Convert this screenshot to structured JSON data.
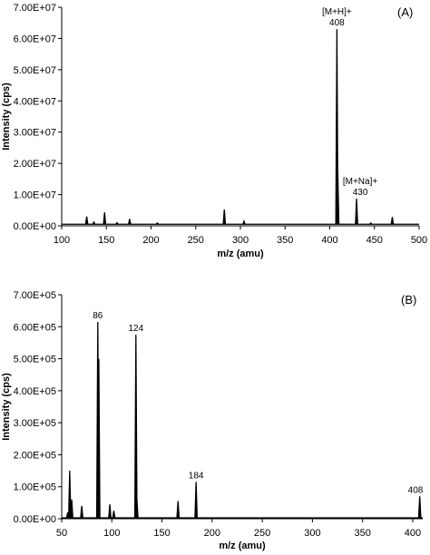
{
  "chart_data": [
    {
      "type": "line",
      "panel_label": "(A)",
      "xlabel": "m/z (amu)",
      "ylabel": "Intensity (cps)",
      "xlim": [
        100,
        500
      ],
      "ylim": [
        0,
        70000000
      ],
      "xticks": [
        100,
        150,
        200,
        250,
        300,
        350,
        400,
        450,
        500
      ],
      "yticks": [
        0,
        10000000,
        20000000,
        30000000,
        40000000,
        50000000,
        60000000,
        70000000
      ],
      "ytick_labels": [
        "0.00E+00",
        "1.00E+07",
        "2.00E+07",
        "3.00E+07",
        "4.00E+07",
        "5.00E+07",
        "6.00E+07",
        "7.00E+07"
      ],
      "baseline": 500000,
      "peaks": [
        {
          "x": 128,
          "y": 3000000
        },
        {
          "x": 136,
          "y": 1200000
        },
        {
          "x": 148,
          "y": 4300000
        },
        {
          "x": 162,
          "y": 1000000
        },
        {
          "x": 176,
          "y": 2200000
        },
        {
          "x": 207,
          "y": 900000
        },
        {
          "x": 282,
          "y": 5200000
        },
        {
          "x": 304,
          "y": 1500000
        },
        {
          "x": 408,
          "y": 63000000
        },
        {
          "x": 409,
          "y": 17000000
        },
        {
          "x": 430,
          "y": 8700000
        },
        {
          "x": 446,
          "y": 900000
        },
        {
          "x": 470,
          "y": 2800000
        }
      ],
      "annotations": [
        {
          "text": "[M+H]+",
          "text2": "408",
          "x": 408,
          "y": 63000000
        },
        {
          "text": "[M+Na]+",
          "text2": "430",
          "x": 430,
          "y": 8700000
        }
      ]
    },
    {
      "type": "line",
      "panel_label": "(B)",
      "xlabel": "m/z (amu)",
      "ylabel": "Intensity (cps)",
      "xlim": [
        50,
        410
      ],
      "ylim": [
        0,
        700000
      ],
      "xticks": [
        50,
        100,
        150,
        200,
        250,
        300,
        350,
        400
      ],
      "yticks": [
        0,
        100000,
        200000,
        300000,
        400000,
        500000,
        600000,
        700000
      ],
      "ytick_labels": [
        "0.00E+00",
        "1.00E+05",
        "2.00E+05",
        "3.00E+05",
        "4.00E+05",
        "5.00E+05",
        "6.00E+05",
        "7.00E+05"
      ],
      "baseline": 3000,
      "peaks": [
        {
          "x": 56,
          "y": 20000
        },
        {
          "x": 58,
          "y": 150000
        },
        {
          "x": 60,
          "y": 60000
        },
        {
          "x": 70,
          "y": 40000
        },
        {
          "x": 86,
          "y": 615000
        },
        {
          "x": 87,
          "y": 500000
        },
        {
          "x": 98,
          "y": 45000
        },
        {
          "x": 102,
          "y": 25000
        },
        {
          "x": 124,
          "y": 575000
        },
        {
          "x": 125,
          "y": 60000
        },
        {
          "x": 166,
          "y": 55000
        },
        {
          "x": 184,
          "y": 115000
        },
        {
          "x": 407,
          "y": 70000
        }
      ],
      "annotations": [
        {
          "text": "86",
          "x": 86,
          "y": 615000
        },
        {
          "text": "124",
          "x": 124,
          "y": 575000
        },
        {
          "text": "184",
          "x": 184,
          "y": 115000
        },
        {
          "text": "408",
          "x": 407,
          "y": 70000
        }
      ]
    }
  ]
}
